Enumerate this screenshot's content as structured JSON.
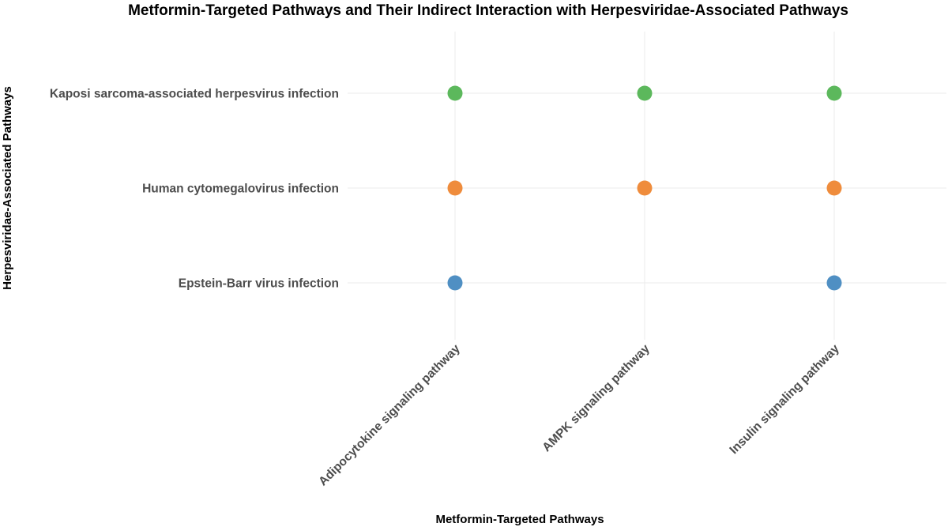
{
  "chart_data": {
    "type": "scatter",
    "title": "Metformin-Targeted Pathways and Their Indirect Interaction with Herpesviridae-Associated Pathways",
    "xlabel": "Metformin-Targeted Pathways",
    "ylabel": "Herpesviridae-Associated Pathways",
    "x_categories": [
      "Adipocytokine signaling pathway",
      "AMPK signaling pathway",
      "Insulin signaling pathway"
    ],
    "y_categories": [
      "Kaposi sarcoma-associated herpesvirus infection",
      "Human cytomegalovirus infection",
      "Epstein-Barr virus infection"
    ],
    "series": [
      {
        "color": "#5cb85c",
        "points": [
          {
            "x": "Adipocytokine signaling pathway",
            "y": "Kaposi sarcoma-associated herpesvirus infection"
          },
          {
            "x": "AMPK signaling pathway",
            "y": "Kaposi sarcoma-associated herpesvirus infection"
          },
          {
            "x": "Insulin signaling pathway",
            "y": "Kaposi sarcoma-associated herpesvirus infection"
          }
        ]
      },
      {
        "color": "#ef8c3c",
        "points": [
          {
            "x": "Adipocytokine signaling pathway",
            "y": "Human cytomegalovirus infection"
          },
          {
            "x": "AMPK signaling pathway",
            "y": "Human cytomegalovirus infection"
          },
          {
            "x": "Insulin signaling pathway",
            "y": "Human cytomegalovirus infection"
          }
        ]
      },
      {
        "color": "#4f8fc3",
        "points": [
          {
            "x": "Adipocytokine signaling pathway",
            "y": "Epstein-Barr virus infection"
          },
          {
            "x": "Insulin signaling pathway",
            "y": "Epstein-Barr virus infection"
          }
        ]
      }
    ],
    "grid": true,
    "legend": "none"
  }
}
